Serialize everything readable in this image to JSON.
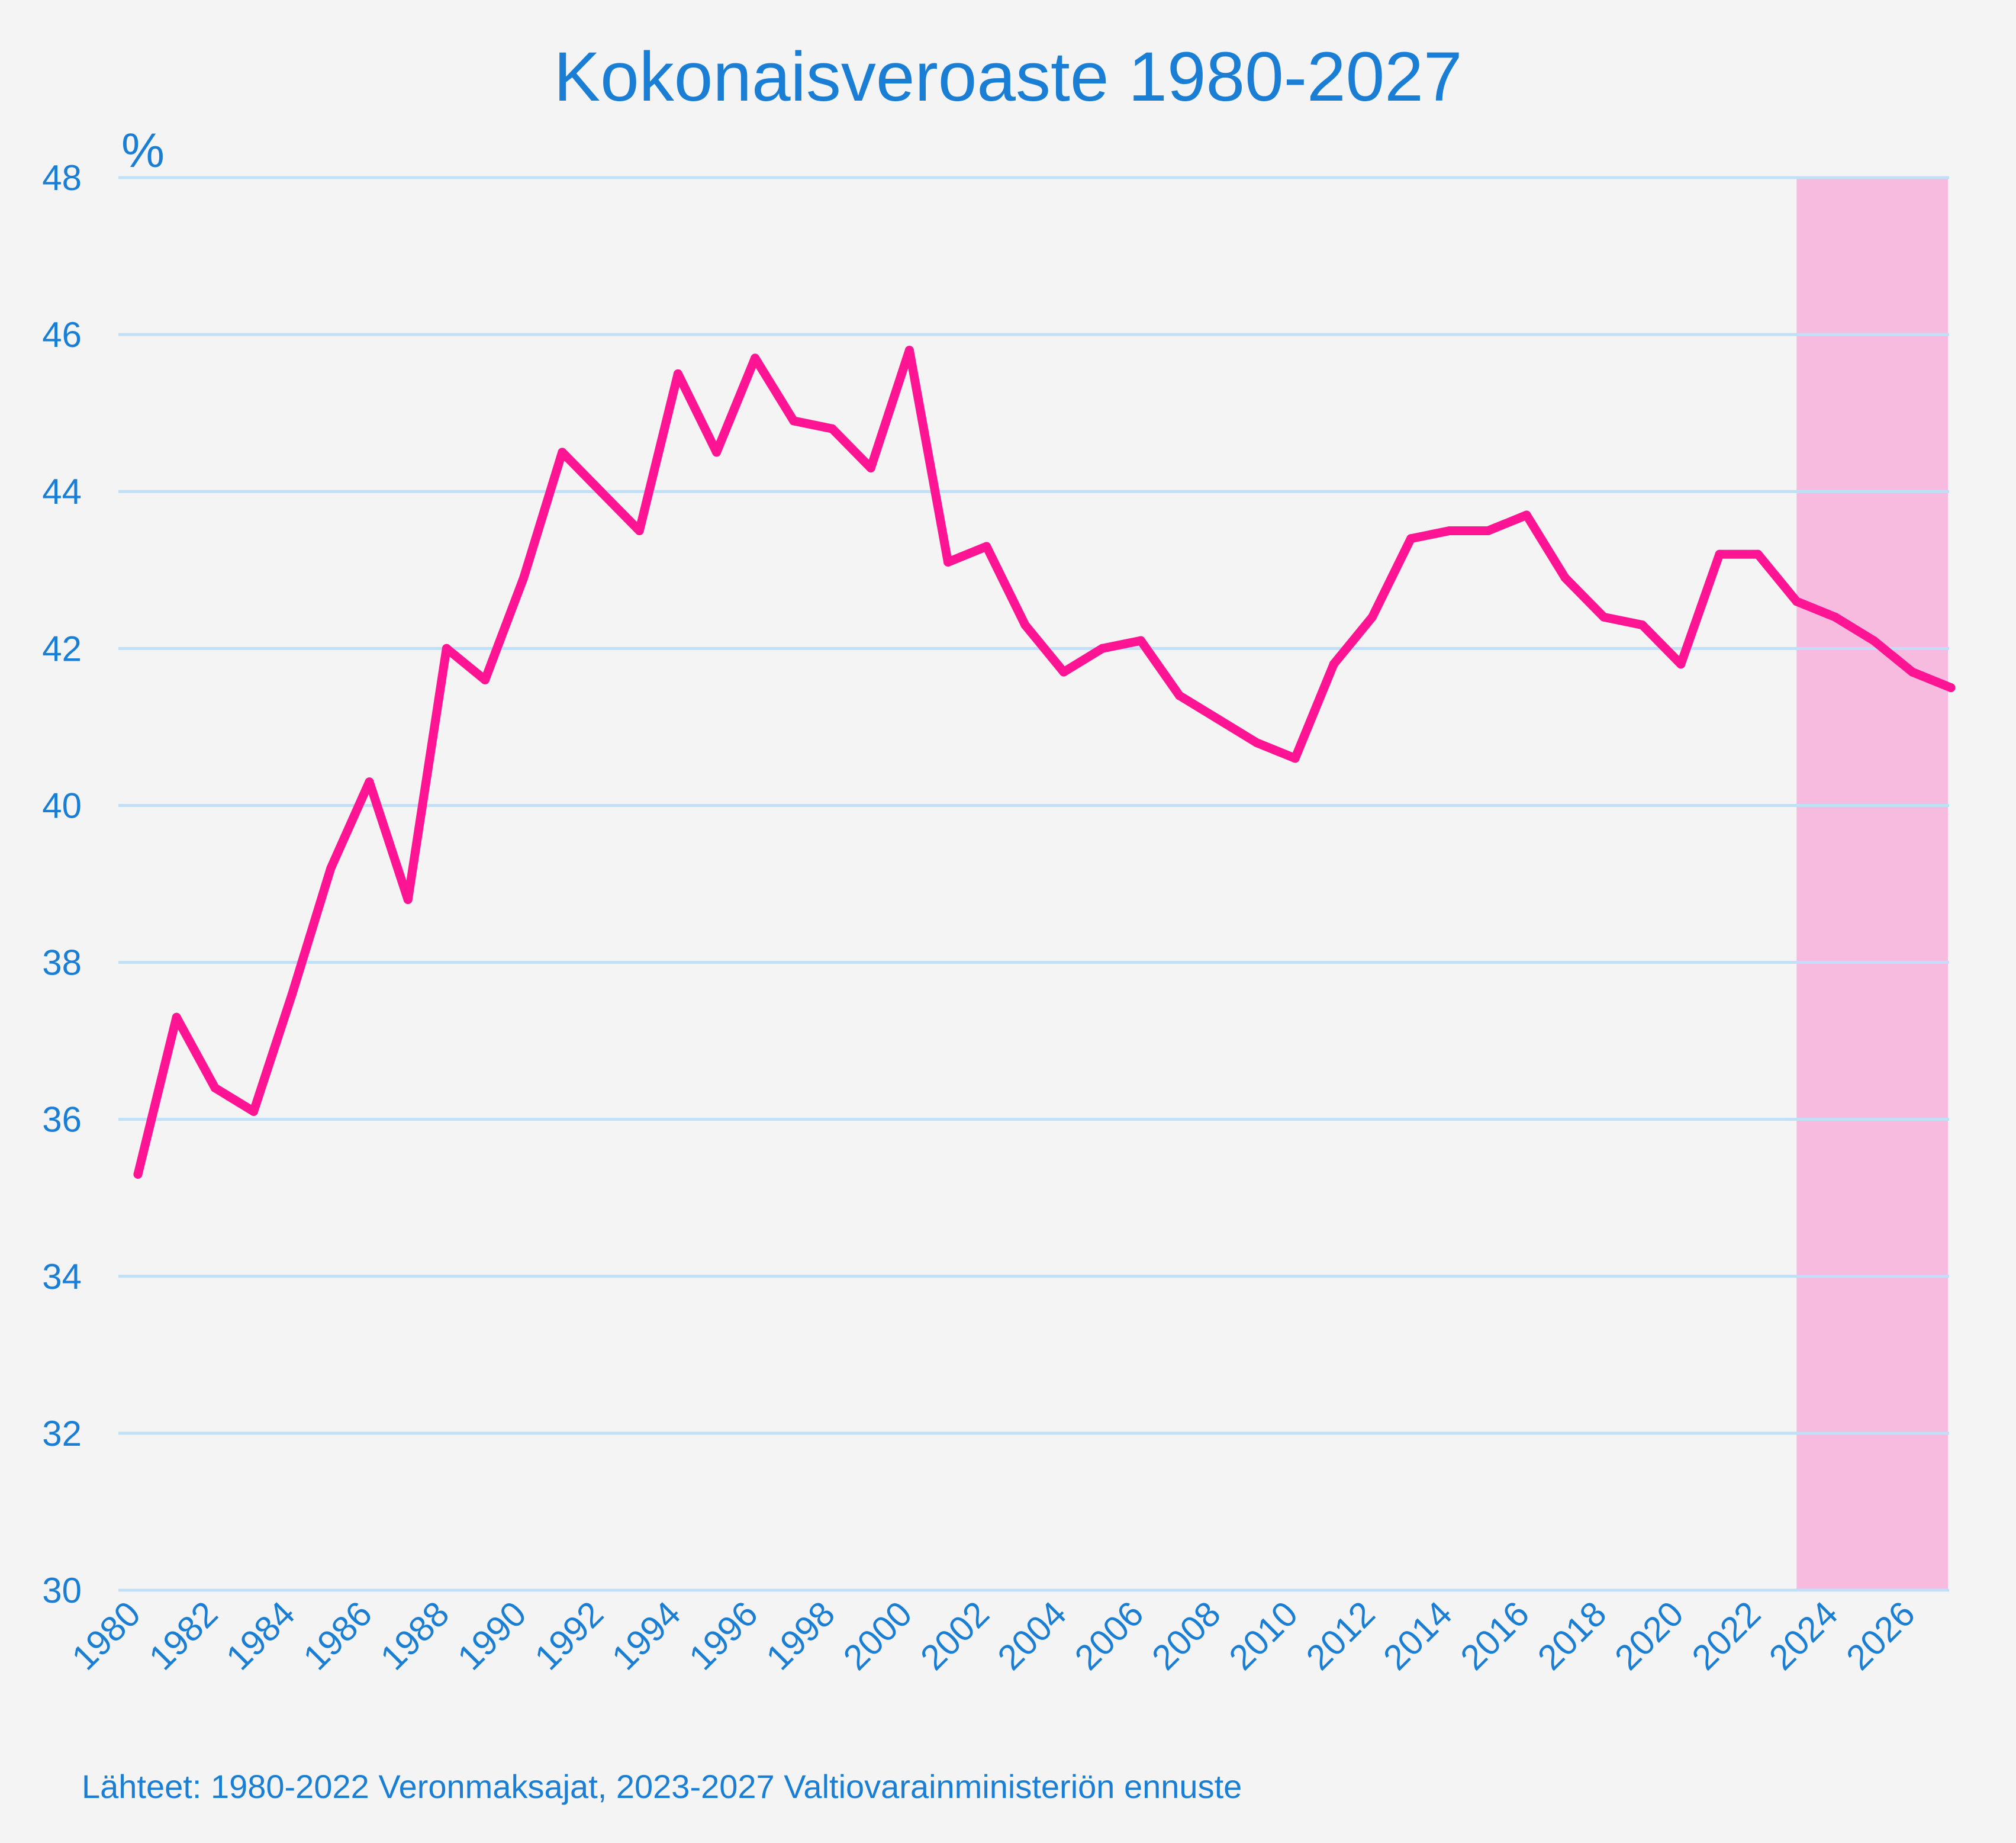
{
  "chart_data": {
    "type": "line",
    "title": "Kokonaisveroaste 1980-2027",
    "ylabel": "%",
    "xlabel": "",
    "ylim": [
      30,
      48
    ],
    "xlim": [
      1980,
      2027
    ],
    "yticks": [
      30,
      32,
      34,
      36,
      38,
      40,
      42,
      44,
      46,
      48
    ],
    "xticks": [
      1980,
      1982,
      1984,
      1986,
      1988,
      1990,
      1992,
      1994,
      1996,
      1998,
      2000,
      2002,
      2004,
      2006,
      2008,
      2010,
      2012,
      2014,
      2016,
      2018,
      2020,
      2022,
      2024,
      2026
    ],
    "grid": "horizontal",
    "forecast_range": [
      2023,
      2027
    ],
    "colors": {
      "line": "#ff1493",
      "forecast_band": "#f7bbe0",
      "text": "#1a7fd4",
      "grid": "#bfe0f7",
      "background": "#f4f4f4"
    },
    "series": [
      {
        "x": [
          1980,
          1981,
          1982,
          1983,
          1984,
          1985,
          1986,
          1987,
          1988,
          1989,
          1990,
          1991,
          1992,
          1993,
          1994,
          1995,
          1996,
          1997,
          1998,
          1999,
          2000,
          2001,
          2002,
          2003,
          2004,
          2005,
          2006,
          2007,
          2008,
          2009,
          2010,
          2011,
          2012,
          2013,
          2014,
          2015,
          2016,
          2017,
          2018,
          2019,
          2020,
          2021,
          2022,
          2023,
          2024,
          2025,
          2026,
          2027
        ],
        "values": [
          35.3,
          37.3,
          36.4,
          36.1,
          37.6,
          39.2,
          40.3,
          38.8,
          42.0,
          41.6,
          42.9,
          44.5,
          44.0,
          43.5,
          45.5,
          44.5,
          45.7,
          44.9,
          44.8,
          44.3,
          45.8,
          43.1,
          43.3,
          42.3,
          41.7,
          42.0,
          42.1,
          41.4,
          41.1,
          40.8,
          40.6,
          41.8,
          42.4,
          43.4,
          43.5,
          43.5,
          43.7,
          42.9,
          42.4,
          42.3,
          41.8,
          43.2,
          43.2,
          42.6,
          42.4,
          42.1,
          41.7,
          41.5
        ]
      }
    ],
    "source": "Lähteet: 1980-2022 Veronmaksajat, 2023-2027 Valtiovarainministeriön ennuste"
  }
}
